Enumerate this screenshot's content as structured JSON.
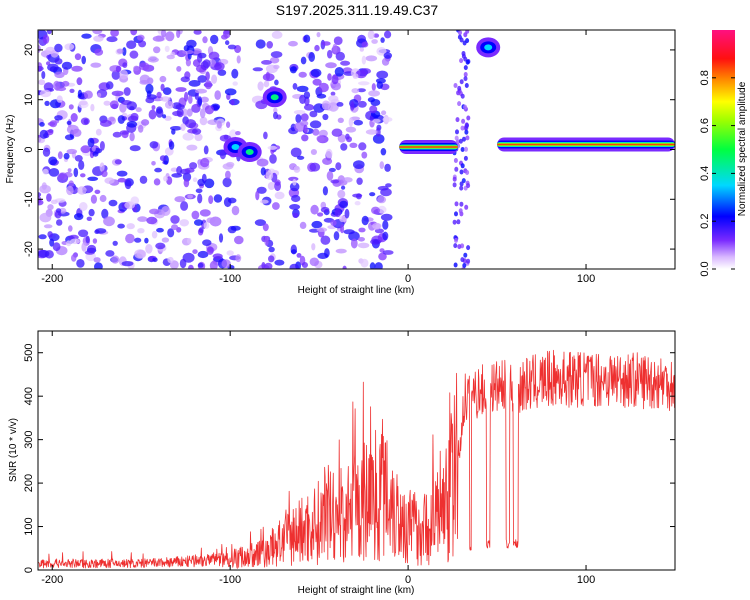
{
  "title": "S197.2025.311.19.49.C37",
  "chart_data": [
    {
      "type": "heatmap",
      "xlabel": "Height of straight line (km)",
      "ylabel": "Frequency (Hz)",
      "xlim": [
        -208,
        150
      ],
      "ylim": [
        -24,
        24
      ],
      "xticks": [
        -200,
        -100,
        0,
        100
      ],
      "xtick_labels": [
        "-200",
        "-100",
        "0",
        "100"
      ],
      "yticks": [
        -20,
        -10,
        0,
        10,
        20
      ],
      "ytick_labels": [
        "-20",
        "-10",
        "0",
        "10",
        "20"
      ],
      "colorbar": {
        "label": "Normalized spectral amplitude",
        "range": [
          0.0,
          1.0
        ],
        "ticks": [
          0.0,
          0.2,
          0.4,
          0.6,
          0.8
        ],
        "tick_labels": [
          "0.0",
          "0.2",
          "0.4",
          "0.6",
          "0.8"
        ]
      },
      "features": [
        {
          "name": "noise-background",
          "x_range": [
            -208,
            -12
          ],
          "f_range": [
            -24,
            24
          ],
          "amplitude": 0.15
        },
        {
          "name": "blob-a",
          "x": -97,
          "f": 0.5,
          "amplitude": 0.35
        },
        {
          "name": "blob-b",
          "x": -89,
          "f": -0.5,
          "amplitude": 0.45
        },
        {
          "name": "blob-c",
          "x": -75,
          "f": 10.5,
          "amplitude": 0.45
        },
        {
          "name": "band-1",
          "x_range": [
            -5,
            28
          ],
          "f": 0.5,
          "amplitude": 0.85
        },
        {
          "name": "blob-d",
          "x": 45,
          "f": 20.5,
          "amplitude": 0.35
        },
        {
          "name": "band-2",
          "x_range": [
            50,
            150
          ],
          "f": 1.0,
          "amplitude": 0.85
        }
      ]
    },
    {
      "type": "line",
      "xlabel": "Height of straight line (km)",
      "ylabel": "SNR (10 * v/v)",
      "xlim": [
        -208,
        150
      ],
      "ylim": [
        0,
        550
      ],
      "xticks": [
        -200,
        -100,
        0,
        100
      ],
      "xtick_labels": [
        "-200",
        "-100",
        "0",
        "100"
      ],
      "yticks": [
        0,
        100,
        200,
        300,
        400,
        500
      ],
      "ytick_labels": [
        "0",
        "100",
        "200",
        "300",
        "400",
        "500"
      ],
      "series": [
        {
          "name": "SNR",
          "color": "#ee3030",
          "x": [
            -208,
            -180,
            -150,
            -120,
            -100,
            -80,
            -70,
            -60,
            -50,
            -40,
            -30,
            -20,
            -12,
            -5,
            0,
            10,
            20,
            28,
            32,
            40,
            50,
            60,
            70,
            80,
            100,
            120,
            150
          ],
          "y": [
            15,
            15,
            15,
            20,
            25,
            40,
            70,
            90,
            110,
            120,
            140,
            170,
            200,
            120,
            100,
            95,
            140,
            250,
            400,
            410,
            420,
            420,
            430,
            440,
            440,
            440,
            430
          ]
        }
      ]
    }
  ]
}
